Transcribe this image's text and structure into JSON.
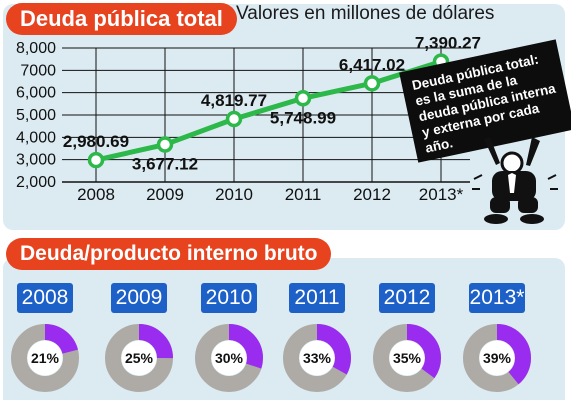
{
  "section1": {
    "title": "Deuda pública total",
    "subtitle": "Valores en millones de dólares"
  },
  "note": {
    "lines": [
      "Deuda pública total:",
      "es la suma de la",
      "deuda pública interna",
      "y externa por cada año."
    ]
  },
  "section2": {
    "title": "Deuda/producto interno bruto"
  },
  "colors": {
    "accent": "#e8431f",
    "line": "#2db84a",
    "tab": "#1c60c8",
    "donut_fill": "#9a2cf0",
    "donut_bg": "#aeaba6",
    "panel": "#dcebf2"
  },
  "chart_data": [
    {
      "type": "line",
      "title": "Deuda pública total",
      "subtitle": "Valores en millones de dólares",
      "categories": [
        "2008",
        "2009",
        "2010",
        "2011",
        "2012",
        "2013*"
      ],
      "series": [
        {
          "values": [
            2980.69,
            3677.12,
            4819.77,
            5748.99,
            6417.02,
            7390.27
          ],
          "labels": [
            "2,980.69",
            "3,677.12",
            "4,819.77",
            "5,748.99",
            "6,417.02",
            "7,390.27"
          ]
        }
      ],
      "ylim": [
        2000,
        8000
      ],
      "yticks": [
        "2,000",
        "3,000",
        "4,000",
        "5,000",
        "6,000",
        "7000",
        "8,000"
      ],
      "grid": true
    },
    {
      "type": "pie",
      "title": "Deuda/producto interno bruto",
      "categories": [
        "2008",
        "2009",
        "2010",
        "2011",
        "2012",
        "2013*"
      ],
      "values": [
        21,
        25,
        30,
        33,
        35,
        39
      ],
      "labels": [
        "21%",
        "25%",
        "30%",
        "33%",
        "35%",
        "39%"
      ]
    }
  ]
}
